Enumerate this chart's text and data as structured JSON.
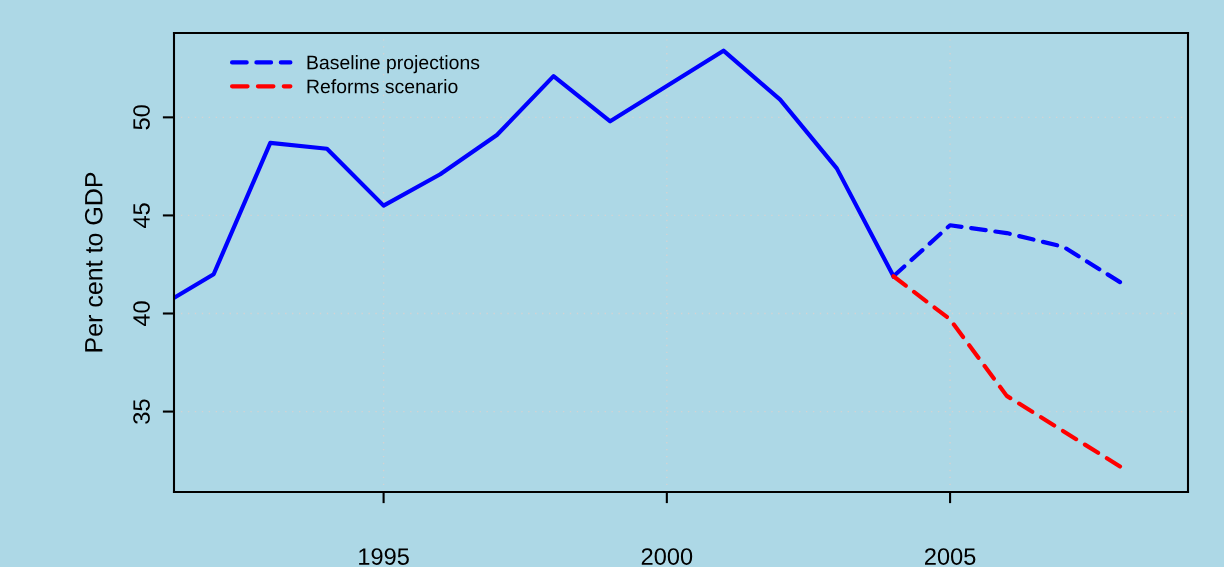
{
  "chart_data": {
    "type": "line",
    "ylabel": "Per cent to GDP",
    "series": [
      {
        "color": "#0000ff",
        "line_style": "solid",
        "x": [
          1991.3,
          1992,
          1993,
          1994,
          1995,
          1996,
          1997,
          1998,
          1999,
          2000,
          2001,
          2002,
          2003,
          2004
        ],
        "values": [
          40.8,
          42.0,
          48.7,
          48.4,
          45.5,
          47.1,
          49.1,
          52.1,
          49.8,
          51.6,
          53.4,
          50.9,
          47.4,
          41.9
        ]
      },
      {
        "name": "Baseline projections",
        "color": "#0000ff",
        "line_style": "dashed",
        "x": [
          2004,
          2005,
          2006,
          2007,
          2008
        ],
        "values": [
          41.9,
          44.5,
          44.1,
          43.4,
          41.6
        ]
      },
      {
        "name": "Reforms scenario",
        "color": "#ff0000",
        "line_style": "dashed",
        "x": [
          2004,
          2005,
          2006,
          2007,
          2008
        ],
        "values": [
          41.9,
          39.7,
          35.8,
          34.0,
          32.2
        ]
      }
    ],
    "xlim": [
      1991.3,
      2009.2
    ],
    "xticks": [
      1995,
      2000,
      2005
    ],
    "ylim": [
      30.9,
      54.3
    ],
    "yticks": [
      35,
      40,
      45,
      50
    ],
    "grid": true,
    "legend": "top left",
    "marker": "none"
  }
}
